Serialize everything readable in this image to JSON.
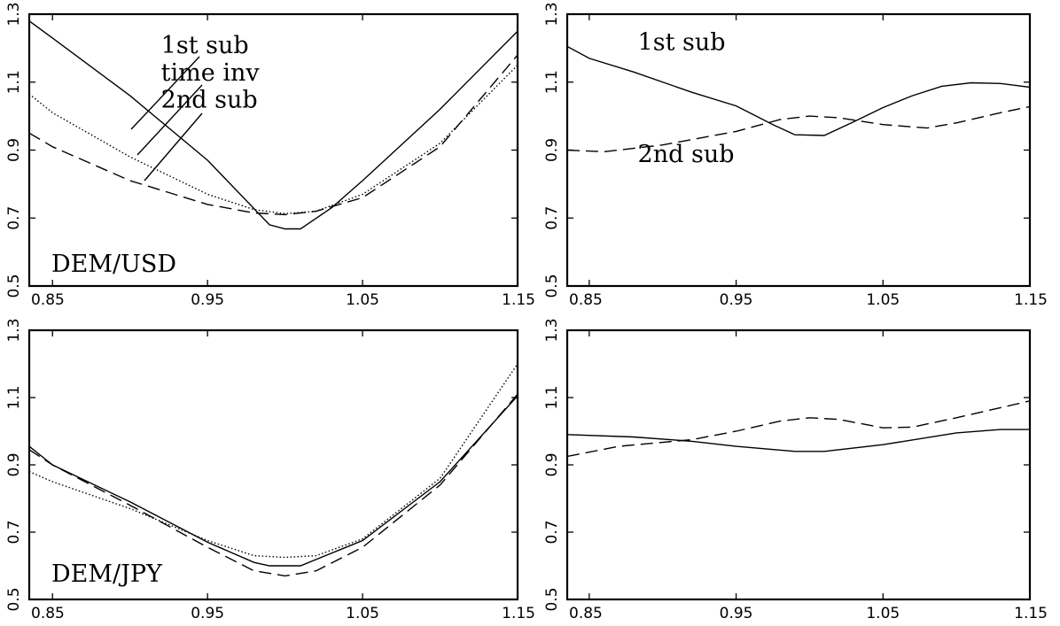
{
  "chart_data": [
    {
      "type": "line",
      "title": "",
      "xlabel": "",
      "ylabel": "",
      "xlim": [
        0.835,
        1.15
      ],
      "ylim": [
        0.5,
        1.3
      ],
      "xticks": [
        "0.85",
        "0.95",
        "1.05",
        "1.15"
      ],
      "yticks": [
        "0.5",
        "0.7",
        "0.9",
        "1.1",
        "1.3"
      ],
      "grid": false,
      "annotations": [
        "DEM/USD"
      ],
      "series": [
        {
          "name": "1st sub",
          "style": "solid",
          "x": [
            0.835,
            0.85,
            0.9,
            0.95,
            0.99,
            1.0,
            1.01,
            1.03,
            1.05,
            1.1,
            1.15
          ],
          "y": [
            1.28,
            1.23,
            1.06,
            0.87,
            0.68,
            0.668,
            0.668,
            0.73,
            0.81,
            1.02,
            1.25
          ]
        },
        {
          "name": "time inv",
          "style": "dotted",
          "x": [
            0.835,
            0.85,
            0.9,
            0.95,
            0.98,
            1.0,
            1.02,
            1.05,
            1.1,
            1.15
          ],
          "y": [
            1.065,
            1.01,
            0.88,
            0.77,
            0.725,
            0.713,
            0.72,
            0.77,
            0.92,
            1.15
          ]
        },
        {
          "name": "2nd sub",
          "style": "dashed",
          "x": [
            0.835,
            0.85,
            0.9,
            0.95,
            0.98,
            1.0,
            1.02,
            1.05,
            1.1,
            1.15
          ],
          "y": [
            0.95,
            0.91,
            0.81,
            0.74,
            0.715,
            0.71,
            0.72,
            0.76,
            0.91,
            1.18
          ]
        }
      ],
      "legend_labels": [
        {
          "text": "1st sub",
          "series": "1st sub",
          "x": 0.92,
          "y": 1.185
        },
        {
          "text": "time inv",
          "series": "time inv",
          "x": 0.92,
          "y": 1.105
        },
        {
          "text": "2nd sub",
          "series": "2nd sub",
          "x": 0.92,
          "y": 1.025
        }
      ]
    },
    {
      "type": "line",
      "title": "",
      "xlabel": "",
      "ylabel": "",
      "xlim": [
        0.835,
        1.15
      ],
      "ylim": [
        0.5,
        1.3
      ],
      "xticks": [
        "0.85",
        "0.95",
        "1.05",
        "1.15"
      ],
      "yticks": [
        "0.5",
        "0.7",
        "0.9",
        "1.1",
        "1.3"
      ],
      "grid": false,
      "series": [
        {
          "name": "1st sub",
          "style": "solid",
          "x": [
            0.835,
            0.85,
            0.88,
            0.92,
            0.95,
            0.975,
            0.99,
            1.01,
            1.03,
            1.05,
            1.07,
            1.09,
            1.11,
            1.13,
            1.15
          ],
          "y": [
            1.205,
            1.17,
            1.13,
            1.07,
            1.03,
            0.975,
            0.945,
            0.943,
            0.983,
            1.025,
            1.06,
            1.088,
            1.098,
            1.096,
            1.085
          ]
        },
        {
          "name": "2nd sub",
          "style": "dashed",
          "x": [
            0.835,
            0.86,
            0.9,
            0.95,
            0.98,
            1.0,
            1.02,
            1.05,
            1.08,
            1.1,
            1.13,
            1.15
          ],
          "y": [
            0.9,
            0.895,
            0.915,
            0.955,
            0.99,
            1.0,
            0.995,
            0.975,
            0.965,
            0.98,
            1.01,
            1.028
          ]
        }
      ],
      "legend_labels": [
        {
          "text": "1st sub",
          "series": "1st sub",
          "x": 0.883,
          "y": 1.195
        },
        {
          "text": "2nd sub",
          "series": "2nd sub",
          "x": 0.883,
          "y": 0.865
        }
      ]
    },
    {
      "type": "line",
      "title": "",
      "xlabel": "",
      "ylabel": "",
      "xlim": [
        0.835,
        1.15
      ],
      "ylim": [
        0.5,
        1.3
      ],
      "xticks": [
        "0.85",
        "0.95",
        "1.05",
        "1.15"
      ],
      "yticks": [
        "0.5",
        "0.7",
        "0.9",
        "1.1",
        "1.3"
      ],
      "grid": false,
      "annotations": [
        "DEM/JPY"
      ],
      "series": [
        {
          "name": "1st sub",
          "style": "solid",
          "x": [
            0.835,
            0.85,
            0.9,
            0.95,
            0.98,
            0.99,
            1.0,
            1.01,
            1.05,
            1.1,
            1.15
          ],
          "y": [
            0.955,
            0.9,
            0.79,
            0.67,
            0.61,
            0.6,
            0.6,
            0.6,
            0.675,
            0.85,
            1.105
          ]
        },
        {
          "name": "time inv",
          "style": "dotted",
          "x": [
            0.835,
            0.85,
            0.9,
            0.95,
            0.98,
            1.0,
            1.02,
            1.05,
            1.1,
            1.15
          ],
          "y": [
            0.88,
            0.85,
            0.77,
            0.675,
            0.63,
            0.625,
            0.63,
            0.68,
            0.86,
            1.2
          ]
        },
        {
          "name": "2nd sub",
          "style": "dashed",
          "x": [
            0.835,
            0.85,
            0.9,
            0.95,
            0.98,
            1.0,
            1.02,
            1.05,
            1.1,
            1.15
          ],
          "y": [
            0.945,
            0.9,
            0.78,
            0.655,
            0.585,
            0.57,
            0.585,
            0.655,
            0.84,
            1.11
          ]
        }
      ]
    },
    {
      "type": "line",
      "title": "",
      "xlabel": "",
      "ylabel": "",
      "xlim": [
        0.835,
        1.15
      ],
      "ylim": [
        0.5,
        1.3
      ],
      "xticks": [
        "0.85",
        "0.95",
        "1.05",
        "1.15"
      ],
      "yticks": [
        "0.5",
        "0.7",
        "0.9",
        "1.1",
        "1.3"
      ],
      "grid": false,
      "series": [
        {
          "name": "1st sub",
          "style": "solid",
          "x": [
            0.835,
            0.88,
            0.92,
            0.95,
            0.99,
            1.01,
            1.05,
            1.1,
            1.13,
            1.15
          ],
          "y": [
            0.99,
            0.983,
            0.97,
            0.955,
            0.94,
            0.94,
            0.96,
            0.995,
            1.005,
            1.005
          ]
        },
        {
          "name": "2nd sub",
          "style": "dashed",
          "x": [
            0.835,
            0.87,
            0.92,
            0.95,
            0.98,
            1.0,
            1.02,
            1.05,
            1.07,
            1.1,
            1.13,
            1.15
          ],
          "y": [
            0.925,
            0.955,
            0.975,
            1.0,
            1.03,
            1.04,
            1.035,
            1.01,
            1.012,
            1.04,
            1.07,
            1.09
          ]
        }
      ]
    }
  ]
}
